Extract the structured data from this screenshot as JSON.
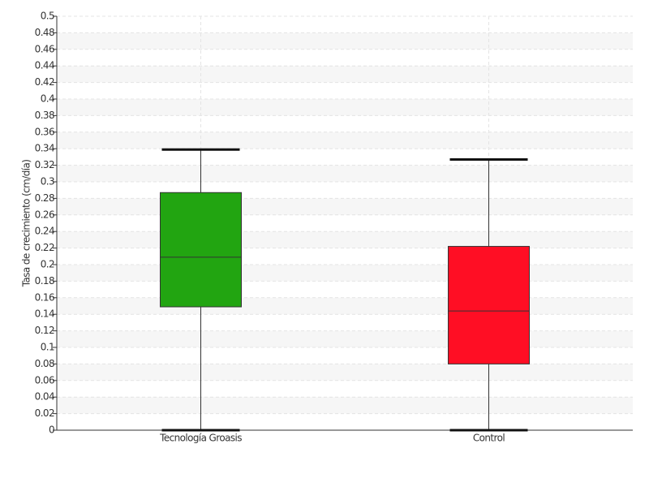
{
  "chart_data": {
    "type": "box",
    "y_label": "Tasa de crecimiento (cm/día)",
    "categories": [
      "Tecnología Groasis",
      "Control"
    ],
    "colors": [
      "#22a511",
      "#ff0e24"
    ],
    "boxes": [
      {
        "min": 0,
        "q1": 0.149,
        "median": 0.209,
        "q3": 0.287,
        "max": 0.339
      },
      {
        "min": 0,
        "q1": 0.08,
        "median": 0.144,
        "q3": 0.222,
        "max": 0.327
      }
    ],
    "ylim": [
      0,
      0.5
    ],
    "yticks": [
      0,
      0.02,
      0.04,
      0.06,
      0.08,
      0.1,
      0.12,
      0.14,
      0.16,
      0.18,
      0.2,
      0.22,
      0.24,
      0.26,
      0.28,
      0.3,
      0.32,
      0.34,
      0.36,
      0.38,
      0.4,
      0.42,
      0.44,
      0.46,
      0.48,
      0.5
    ],
    "grid": true
  }
}
